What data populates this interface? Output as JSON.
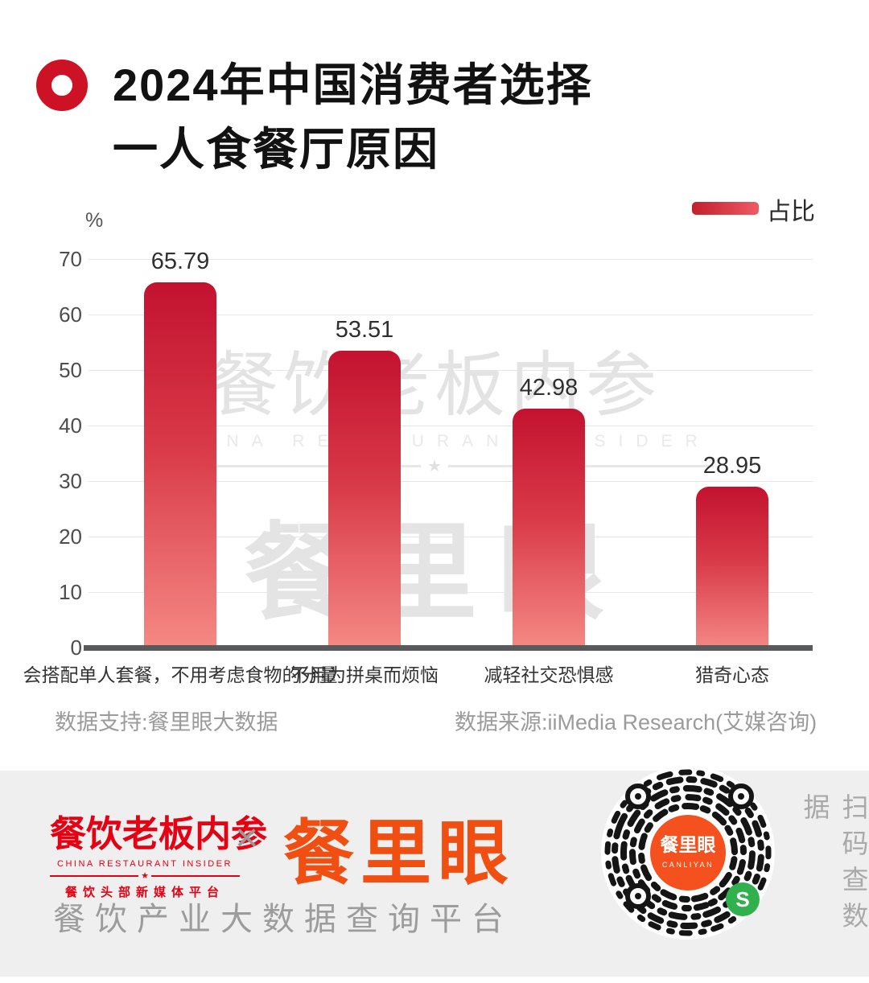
{
  "title": {
    "line1": "2024年中国消费者选择",
    "line2": "一人食餐厅原因"
  },
  "legend": {
    "label": "占比"
  },
  "chart_data": {
    "type": "bar",
    "title": "2024年中国消费者选择一人食餐厅原因",
    "series_name": "占比",
    "categories": [
      "会搭配单人套餐，不用考虑食物的分量",
      "不用为拼桌而烦恼",
      "减轻社交恐惧感",
      "猎奇心态"
    ],
    "values": [
      65.79,
      53.51,
      42.98,
      28.95
    ],
    "value_labels": [
      "65.79",
      "53.51",
      "42.98",
      "28.95"
    ],
    "ylabel": "%",
    "ylim": [
      0,
      70
    ],
    "yticks": [
      0,
      10,
      20,
      30,
      40,
      50,
      60,
      70
    ],
    "grid": true,
    "legend_position": "top-right",
    "bar_gradient": [
      "#c31230",
      "#f58a85"
    ]
  },
  "watermark": {
    "line1": "餐饮老板内参",
    "line2": "CHINA RESTAURANT INSIDER",
    "star": "★",
    "line3": "餐里眼"
  },
  "sources": {
    "support": "数据支持:餐里眼大数据",
    "origin": "数据来源:iiMedia Research(艾媒咨询)"
  },
  "footer": {
    "brand1": {
      "name": "餐饮老板内参",
      "subtitle": "CHINA RESTAURANT INSIDER",
      "star": "★",
      "tagline": "餐饮头部新媒体平台",
      "color": "#e60012"
    },
    "separator": "×",
    "brand2": {
      "name": "餐里眼",
      "color": "#f04f11"
    },
    "platform_tagline": "餐饮产业大数据查询平台",
    "qr": {
      "center_name": "餐里眼",
      "center_sub": "CANLIYAN",
      "center_color": "#f4511e",
      "badge_letter": "S",
      "badge_color": "#31b14e"
    },
    "scan_hint": "扫码查数据"
  }
}
